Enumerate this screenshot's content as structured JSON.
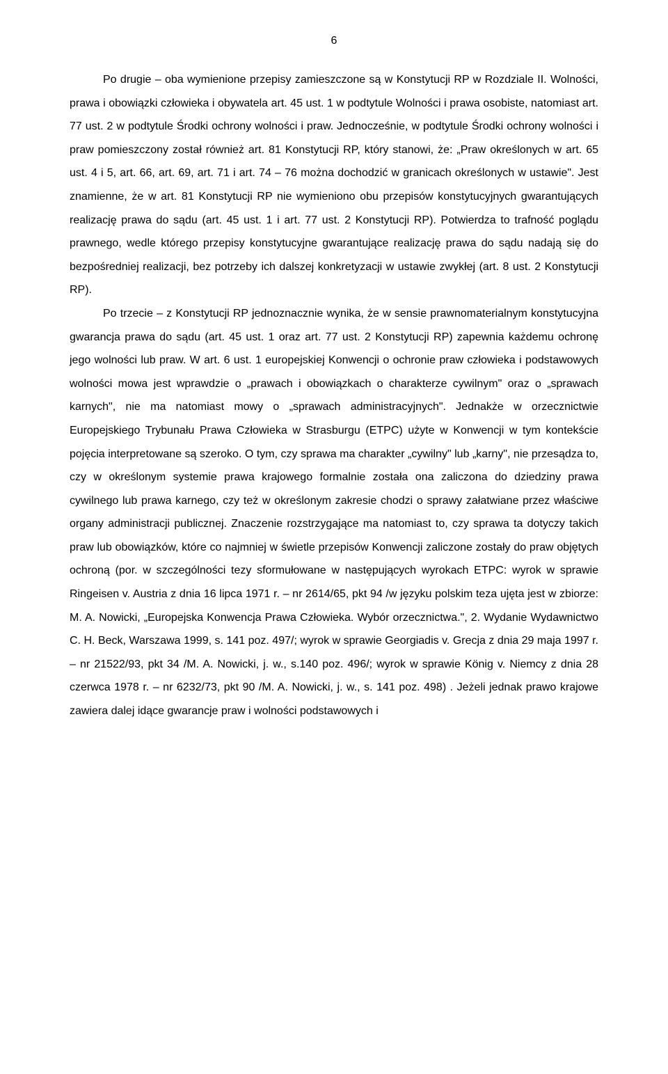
{
  "pageNumber": "6",
  "paragraphs": [
    {
      "indent": true,
      "text": "Po drugie – oba wymienione przepisy zamieszczone są w Konstytucji RP w Rozdziale II. Wolności, prawa i obowiązki człowieka i obywatela art. 45 ust. 1 w podtytule Wolności i prawa osobiste, natomiast art. 77 ust. 2 w podtytule Środki ochrony wolności i praw. Jednocześnie, w podtytule Środki ochrony wolności i praw pomieszczony został również art. 81 Konstytucji RP, który stanowi, że: „Praw określonych w art. 65 ust. 4 i 5, art. 66, art. 69, art. 71 i art. 74 – 76 można dochodzić w granicach określonych w ustawie\". Jest znamienne, że w art. 81 Konstytucji RP nie wymieniono obu przepisów konstytucyjnych gwarantujących realizację prawa do sądu (art. 45 ust. 1 i art. 77 ust. 2 Konstytucji RP). Potwierdza to trafność poglądu prawnego, wedle którego przepisy konstytucyjne gwarantujące realizację prawa do sądu nadają się do bezpośredniej realizacji, bez potrzeby ich dalszej konkretyzacji w ustawie zwykłej (art. 8 ust. 2 Konstytucji RP)."
    },
    {
      "indent": true,
      "text": "Po trzecie – z Konstytucji RP jednoznacznie wynika, że w sensie prawnomaterialnym konstytucyjna gwarancja prawa do sądu (art. 45 ust. 1 oraz art. 77 ust. 2 Konstytucji RP) zapewnia każdemu ochronę jego wolności lub praw. W art. 6 ust. 1 europejskiej Konwencji o ochronie praw człowieka i podstawowych wolności mowa jest wprawdzie o „prawach i obowiązkach o charakterze cywilnym\" oraz o „sprawach karnych\", nie ma natomiast mowy o „sprawach administracyjnych\". Jednakże w orzecznictwie Europejskiego Trybunału Prawa Człowieka w Strasburgu (ETPC) użyte w Konwencji w tym kontekście pojęcia interpretowane są szeroko. O tym, czy sprawa ma charakter „cywilny\" lub „karny\", nie przesądza to, czy w określonym systemie prawa krajowego formalnie została ona zaliczona do dziedziny prawa cywilnego lub prawa karnego, czy też w określonym zakresie chodzi o sprawy załatwiane przez właściwe organy administracji publicznej. Znaczenie rozstrzygające ma natomiast to, czy sprawa ta dotyczy takich praw lub obowiązków, które co najmniej w świetle przepisów Konwencji zaliczone zostały do praw objętych ochroną (por. w szczególności tezy sformułowane w następujących wyrokach ETPC: wyrok w sprawie Ringeisen v. Austria z dnia 16 lipca 1971 r. – nr 2614/65, pkt 94 /w języku polskim teza ujęta jest w zbiorze: M. A. Nowicki, „Europejska Konwencja Prawa Człowieka. Wybór orzecznictwa.\", 2. Wydanie Wydawnictwo C. H. Beck, Warszawa 1999, s. 141 poz. 497/; wyrok w sprawie Georgiadis v. Grecja z dnia 29 maja 1997 r. – nr 21522/93, pkt 34 /M. A. Nowicki, j. w., s.140 poz. 496/; wyrok w sprawie König v. Niemcy z dnia 28 czerwca 1978 r. – nr 6232/73, pkt 90 /M. A. Nowicki, j. w., s. 141 poz. 498) . Jeżeli jednak prawo krajowe zawiera dalej idące gwarancje praw i wolności podstawowych i"
    }
  ]
}
